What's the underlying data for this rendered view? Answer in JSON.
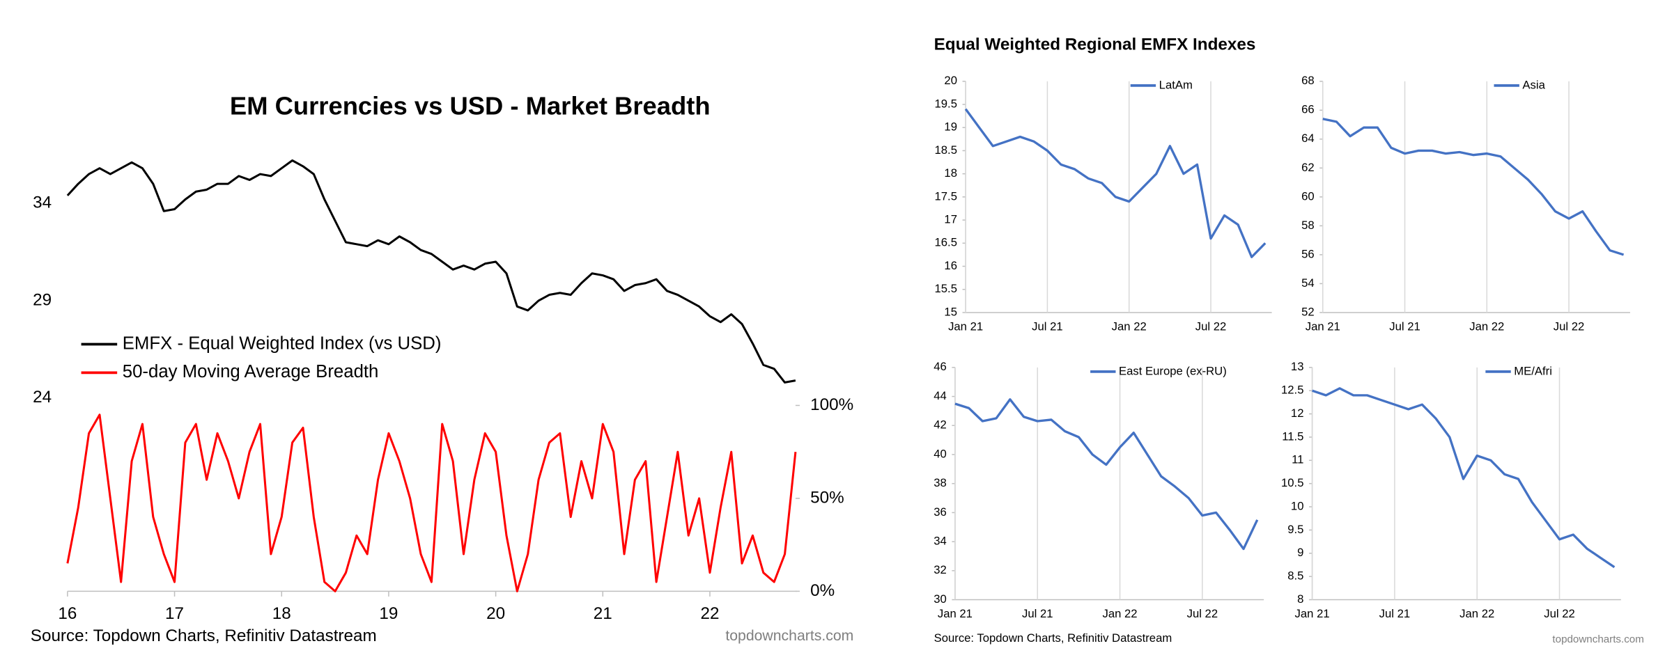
{
  "chart_data": [
    {
      "type": "line",
      "title": "EM Currencies vs USD - Market Breadth",
      "source": "Source: Topdown Charts, Refinitiv Datastream",
      "watermark": "topdowncharts.com",
      "legend": "left",
      "x": [
        16.0,
        16.1,
        16.2,
        16.3,
        16.4,
        16.5,
        16.6,
        16.7,
        16.8,
        16.9,
        17.0,
        17.1,
        17.2,
        17.3,
        17.4,
        17.5,
        17.6,
        17.7,
        17.8,
        17.9,
        18.0,
        18.1,
        18.2,
        18.3,
        18.4,
        18.5,
        18.6,
        18.7,
        18.8,
        18.9,
        19.0,
        19.1,
        19.2,
        19.3,
        19.4,
        19.5,
        19.6,
        19.7,
        19.8,
        19.9,
        20.0,
        20.1,
        20.2,
        20.3,
        20.4,
        20.5,
        20.6,
        20.7,
        20.8,
        20.9,
        21.0,
        21.1,
        21.2,
        21.3,
        21.4,
        21.5,
        21.6,
        21.7,
        21.8,
        21.9,
        22.0,
        22.1,
        22.2,
        22.3,
        22.4,
        22.5,
        22.6,
        22.7,
        22.8
      ],
      "xlim": [
        16,
        22.8
      ],
      "xticks": [
        16,
        17,
        18,
        19,
        20,
        21,
        22
      ],
      "ylim": [
        24,
        37.5
      ],
      "yticks": [
        24,
        29,
        34
      ],
      "y2lim": [
        0,
        100
      ],
      "y2ticks": [
        {
          "value": 0,
          "label": "0%"
        },
        {
          "value": 50,
          "label": "50%"
        },
        {
          "value": 100,
          "label": "100%"
        }
      ],
      "series": [
        {
          "name": "EMFX - Equal Weighted Index (vs USD)",
          "color": "#000000",
          "values": [
            34.4,
            35.0,
            35.5,
            35.8,
            35.5,
            35.8,
            36.1,
            35.8,
            35.0,
            33.6,
            33.7,
            34.2,
            34.6,
            34.7,
            35.0,
            35.0,
            35.4,
            35.2,
            35.5,
            35.4,
            35.8,
            36.2,
            35.9,
            35.5,
            34.2,
            33.1,
            32.0,
            31.9,
            31.8,
            32.1,
            31.9,
            32.3,
            32.0,
            31.6,
            31.4,
            31.0,
            30.6,
            30.8,
            30.6,
            30.9,
            31.0,
            30.4,
            28.7,
            28.5,
            29.0,
            29.3,
            29.4,
            29.3,
            29.9,
            30.4,
            30.3,
            30.1,
            29.5,
            29.8,
            29.9,
            30.1,
            29.5,
            29.3,
            29.0,
            28.7,
            28.2,
            27.9,
            28.3,
            27.8,
            26.8,
            25.7,
            25.5,
            24.8,
            24.9
          ]
        },
        {
          "name": "50-day Moving Average Breadth",
          "color": "#ff0000",
          "axis": "y2",
          "values": [
            15,
            45,
            85,
            95,
            50,
            5,
            70,
            90,
            40,
            20,
            5,
            80,
            90,
            60,
            85,
            70,
            50,
            75,
            90,
            20,
            40,
            80,
            88,
            40,
            5,
            0,
            10,
            30,
            20,
            60,
            85,
            70,
            50,
            20,
            5,
            90,
            70,
            20,
            60,
            85,
            75,
            30,
            0,
            20,
            60,
            80,
            85,
            40,
            70,
            50,
            90,
            75,
            20,
            60,
            70,
            5,
            40,
            75,
            30,
            50,
            10,
            45,
            75,
            15,
            30,
            10,
            5,
            20,
            75
          ]
        }
      ]
    },
    {
      "type": "line",
      "legend": "upper right",
      "grid": "x",
      "categories": [
        "Jan 21",
        null,
        null,
        null,
        null,
        null,
        "Jul 21",
        null,
        null,
        null,
        null,
        null,
        "Jan 22",
        null,
        null,
        null,
        null,
        null,
        "Jul 22",
        null,
        null,
        null,
        null
      ],
      "ylim": [
        15,
        20
      ],
      "yticks": [
        15,
        15.5,
        16,
        16.5,
        17,
        17.5,
        18,
        18.5,
        19,
        19.5,
        20
      ],
      "series": [
        {
          "name": "LatAm",
          "color": "#4472c4",
          "values": [
            19.4,
            19.0,
            18.6,
            18.7,
            18.8,
            18.7,
            18.5,
            18.2,
            18.1,
            17.9,
            17.8,
            17.5,
            17.4,
            17.7,
            18.0,
            18.6,
            18.0,
            18.2,
            16.6,
            17.1,
            16.9,
            16.2,
            16.5
          ]
        }
      ]
    },
    {
      "type": "line",
      "legend": "upper right",
      "grid": "x",
      "categories": [
        "Jan 21",
        null,
        null,
        null,
        null,
        null,
        "Jul 21",
        null,
        null,
        null,
        null,
        null,
        "Jan 22",
        null,
        null,
        null,
        null,
        null,
        "Jul 22",
        null,
        null,
        null,
        null
      ],
      "ylim": [
        52,
        68
      ],
      "yticks": [
        52,
        54,
        56,
        58,
        60,
        62,
        64,
        66,
        68
      ],
      "series": [
        {
          "name": "Asia",
          "color": "#4472c4",
          "values": [
            65.4,
            65.2,
            64.2,
            64.8,
            64.8,
            63.4,
            63.0,
            63.2,
            63.2,
            63.0,
            63.1,
            62.9,
            63.0,
            62.8,
            62.0,
            61.2,
            60.2,
            59.0,
            58.5,
            59.0,
            57.6,
            56.3,
            56.0
          ]
        }
      ]
    },
    {
      "type": "line",
      "legend": "upper right",
      "grid": "x",
      "categories": [
        "Jan 21",
        null,
        null,
        null,
        null,
        null,
        "Jul 21",
        null,
        null,
        null,
        null,
        null,
        "Jan 22",
        null,
        null,
        null,
        null,
        null,
        "Jul 22",
        null,
        null,
        null,
        null
      ],
      "ylim": [
        30,
        46
      ],
      "yticks": [
        30,
        32,
        34,
        36,
        38,
        40,
        42,
        44,
        46
      ],
      "series": [
        {
          "name": "East Europe (ex-RU)",
          "color": "#4472c4",
          "values": [
            43.5,
            43.2,
            42.3,
            42.5,
            43.8,
            42.6,
            42.3,
            42.4,
            41.6,
            41.2,
            40.0,
            39.3,
            40.5,
            41.5,
            40.0,
            38.5,
            37.8,
            37.0,
            35.8,
            36.0,
            34.8,
            33.5,
            35.5
          ]
        }
      ]
    },
    {
      "type": "line",
      "legend": "upper right",
      "grid": "x",
      "categories": [
        "Jan 21",
        null,
        null,
        null,
        null,
        null,
        "Jul 21",
        null,
        null,
        null,
        null,
        null,
        "Jan 22",
        null,
        null,
        null,
        null,
        null,
        "Jul 22",
        null,
        null,
        null,
        null
      ],
      "ylim": [
        8,
        13
      ],
      "yticks": [
        8,
        8.5,
        9,
        9.5,
        10,
        10.5,
        11,
        11.5,
        12,
        12.5,
        13
      ],
      "series": [
        {
          "name": "ME/Afri",
          "color": "#4472c4",
          "values": [
            12.5,
            12.4,
            12.55,
            12.4,
            12.4,
            12.3,
            12.2,
            12.1,
            12.2,
            11.9,
            11.5,
            10.6,
            11.1,
            11.0,
            10.7,
            10.6,
            10.1,
            9.7,
            9.3,
            9.4,
            9.1,
            8.9,
            8.7
          ]
        }
      ]
    }
  ],
  "regional": {
    "title": "Equal Weighted Regional EMFX Indexes",
    "source": "Source: Topdown Charts, Refinitiv Datastream",
    "watermark": "topdowncharts.com"
  }
}
